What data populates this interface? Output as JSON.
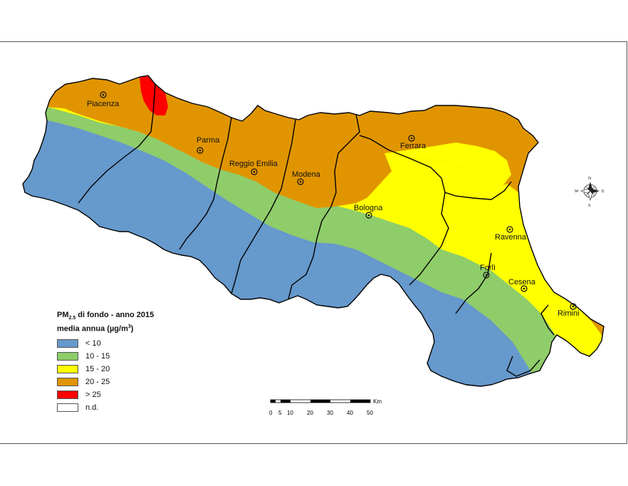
{
  "map": {
    "legend": {
      "title_prefix": "PM",
      "title_sub": "2.5",
      "title_rest": " di fondo - anno 2015",
      "subtitle_prefix": "media annua (µg/m",
      "subtitle_sup": "3",
      "subtitle_suffix": ")",
      "items": [
        {
          "label": "< 10",
          "color": "#6699cc"
        },
        {
          "label": "10 - 15",
          "color": "#8fcc6a"
        },
        {
          "label": "15 - 20",
          "color": "#ffff00"
        },
        {
          "label": "20 - 25",
          "color": "#e09500"
        },
        {
          "label": "> 25",
          "color": "#ff0000"
        },
        {
          "label": "n.d.",
          "color": "#ffffff"
        }
      ]
    },
    "cities": [
      {
        "name": "Piacenza"
      },
      {
        "name": "Parma"
      },
      {
        "name": "Reggio Emilia"
      },
      {
        "name": "Modena"
      },
      {
        "name": "Ferrara"
      },
      {
        "name": "Bologna"
      },
      {
        "name": "Ravenna"
      },
      {
        "name": "Forlì"
      },
      {
        "name": "Cesena"
      },
      {
        "name": "Rimini"
      }
    ],
    "scalebar": {
      "unit": "Km",
      "ticks": [
        "0",
        "5",
        "10",
        "20",
        "30",
        "40",
        "50"
      ]
    },
    "compass": {
      "n": "N",
      "s": "S",
      "e": "E",
      "w": "W"
    }
  }
}
